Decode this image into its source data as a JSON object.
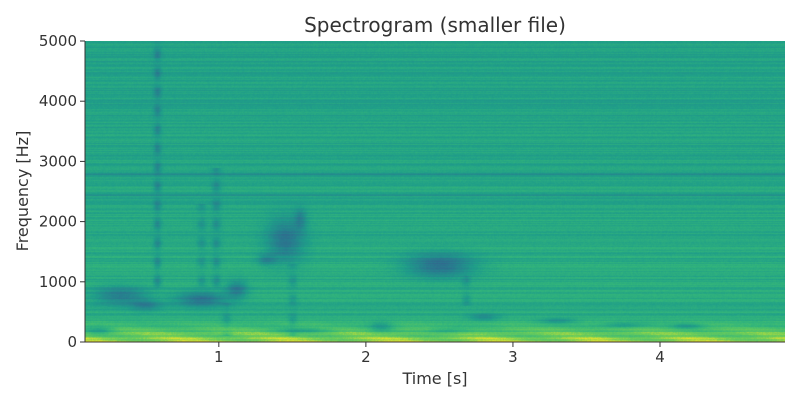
{
  "chart_data": {
    "type": "heatmap",
    "title": "Spectrogram (smaller file)",
    "xlabel": "Time [s]",
    "ylabel": "Frequency [Hz]",
    "xlim": [
      0.09,
      4.85
    ],
    "ylim": [
      0,
      5000
    ],
    "x_ticks": [
      1,
      2,
      3,
      4
    ],
    "x_tick_labels": [
      "1",
      "2",
      "3",
      "4"
    ],
    "y_ticks": [
      0,
      1000,
      2000,
      3000,
      4000,
      5000
    ],
    "y_tick_labels": [
      "0",
      "1000",
      "2000",
      "3000",
      "4000",
      "5000"
    ],
    "colormap": "viridis",
    "background_color": "#4fbf6f",
    "grid": false,
    "regions": [
      {
        "type": "low_freq_band",
        "t0": 0.09,
        "t1": 4.85,
        "f0": 0,
        "f1": 420,
        "intensity": 0.85
      },
      {
        "type": "blob",
        "t": 0.33,
        "f": 780,
        "dt": 0.18,
        "df": 150,
        "intensity": -0.7
      },
      {
        "type": "blob",
        "t": 0.5,
        "f": 620,
        "dt": 0.1,
        "df": 90,
        "intensity": -0.55
      },
      {
        "type": "blob",
        "t": 0.18,
        "f": 200,
        "dt": 0.1,
        "df": 60,
        "intensity": -0.5
      },
      {
        "type": "blob",
        "t": 0.88,
        "f": 720,
        "dt": 0.17,
        "df": 120,
        "intensity": -0.85
      },
      {
        "type": "blob",
        "t": 1.12,
        "f": 880,
        "dt": 0.07,
        "df": 140,
        "intensity": -0.7
      },
      {
        "type": "blob",
        "t": 1.45,
        "f": 1700,
        "dt": 0.12,
        "df": 350,
        "intensity": -0.75
      },
      {
        "type": "blob",
        "t": 1.32,
        "f": 1370,
        "dt": 0.06,
        "df": 90,
        "intensity": -0.5
      },
      {
        "type": "blob",
        "t": 1.55,
        "f": 2050,
        "dt": 0.04,
        "df": 180,
        "intensity": -0.5
      },
      {
        "type": "blob",
        "t": 2.5,
        "f": 1280,
        "dt": 0.22,
        "df": 190,
        "intensity": -0.9
      },
      {
        "type": "blob",
        "t": 2.8,
        "f": 420,
        "dt": 0.1,
        "df": 60,
        "intensity": -0.5
      },
      {
        "type": "blob",
        "t": 2.55,
        "f": 190,
        "dt": 0.15,
        "df": 50,
        "intensity": -0.45
      },
      {
        "type": "blob",
        "t": 1.58,
        "f": 200,
        "dt": 0.2,
        "df": 40,
        "intensity": -0.45
      },
      {
        "type": "blob",
        "t": 2.1,
        "f": 260,
        "dt": 0.08,
        "df": 90,
        "intensity": -0.45
      },
      {
        "type": "blob",
        "t": 3.3,
        "f": 360,
        "dt": 0.12,
        "df": 45,
        "intensity": -0.45
      },
      {
        "type": "blob",
        "t": 3.75,
        "f": 290,
        "dt": 0.15,
        "df": 45,
        "intensity": -0.45
      },
      {
        "type": "blob",
        "t": 4.18,
        "f": 270,
        "dt": 0.1,
        "df": 45,
        "intensity": -0.45
      },
      {
        "type": "vertical_streak",
        "t": 0.58,
        "f0": 900,
        "f1": 5000,
        "dt": 0.025,
        "intensity": -0.55
      },
      {
        "type": "vertical_streak",
        "t": 0.98,
        "f0": 900,
        "f1": 2900,
        "dt": 0.03,
        "intensity": -0.45
      },
      {
        "type": "vertical_streak",
        "t": 0.88,
        "f0": 900,
        "f1": 2300,
        "dt": 0.03,
        "intensity": -0.35
      },
      {
        "type": "vertical_streak",
        "t": 1.5,
        "f0": 100,
        "f1": 1300,
        "dt": 0.03,
        "intensity": -0.35
      },
      {
        "type": "vertical_streak",
        "t": 2.68,
        "f0": 600,
        "f1": 1100,
        "dt": 0.03,
        "intensity": -0.35
      },
      {
        "type": "vertical_streak",
        "t": 1.05,
        "f0": 100,
        "f1": 650,
        "dt": 0.03,
        "intensity": -0.35
      },
      {
        "type": "horizontal_band",
        "f": 2800,
        "df": 30,
        "intensity": -0.45
      },
      {
        "type": "horizontal_band",
        "f": 2450,
        "df": 25,
        "intensity": -0.35
      },
      {
        "type": "horizontal_band",
        "f": 3050,
        "df": 20,
        "intensity": -0.25
      }
    ]
  }
}
